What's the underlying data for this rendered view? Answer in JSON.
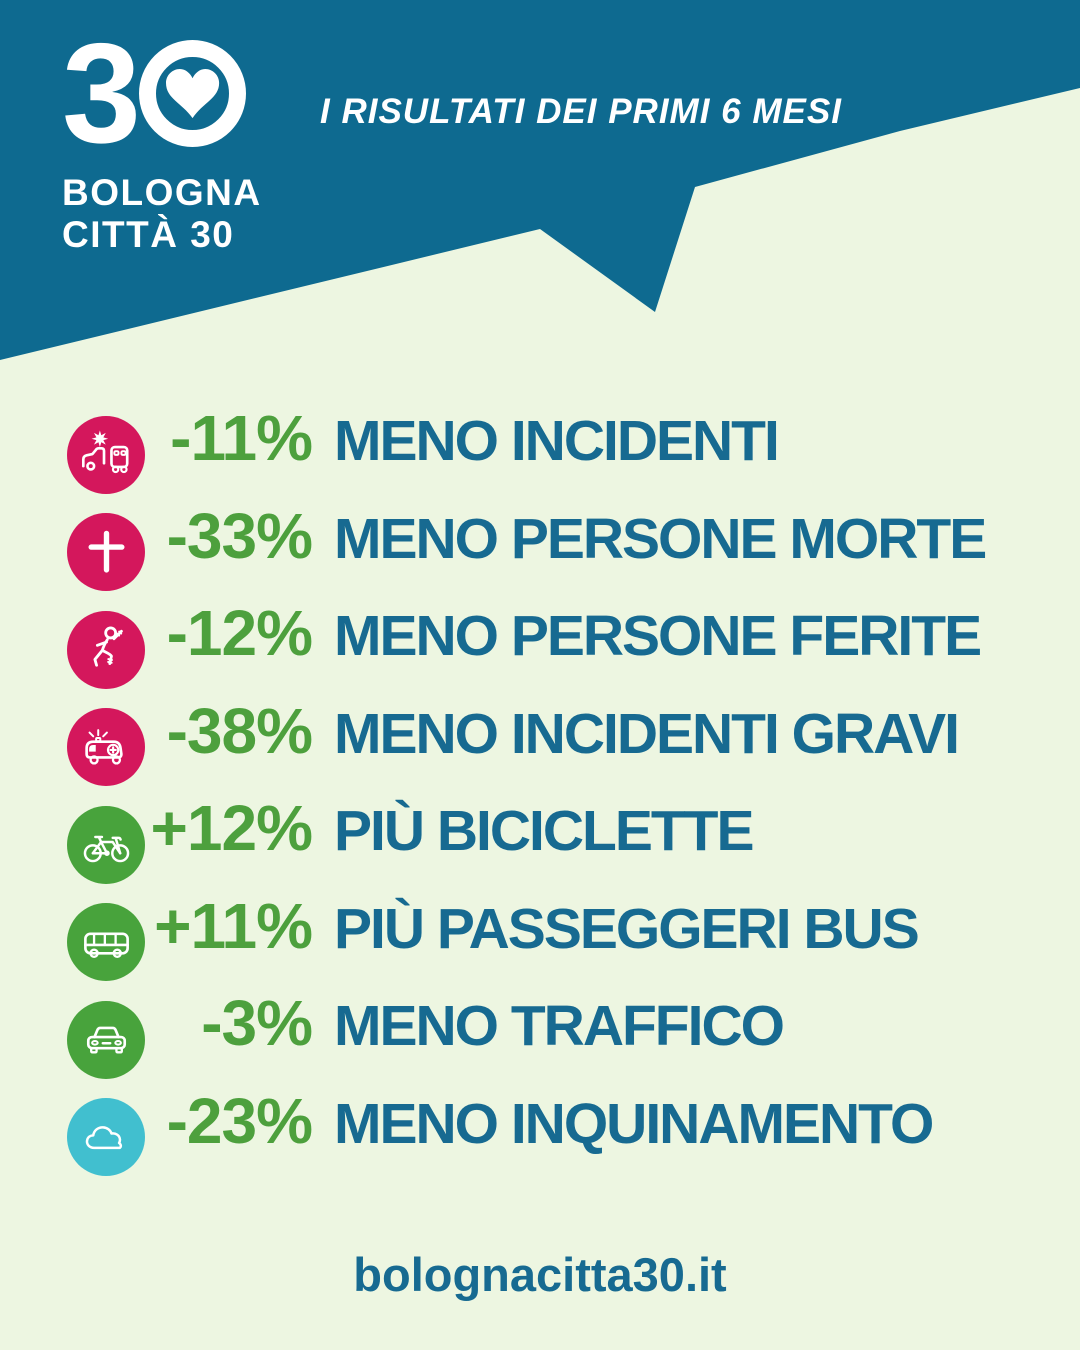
{
  "colors": {
    "background": "#edf6e1",
    "header-bg": "#0e6a90",
    "text-blue": "#176a91",
    "value-green": "#4da03d",
    "circle-pink": "#d4175c",
    "circle-green": "#48a33c",
    "circle-cyan": "#41bfcf",
    "white": "#ffffff"
  },
  "header": {
    "logo": {
      "number": "3",
      "heart_icon": "heart-in-circle",
      "line1": "BOLOGNA",
      "line2": "CITTÀ 30"
    },
    "subtitle": "I RISULTATI DEI PRIMI 6 MESI"
  },
  "stats": [
    {
      "icon": "car-crash",
      "icon_color": "#d4175c",
      "value": "-11%",
      "label": "MENO INCIDENTI"
    },
    {
      "icon": "memorial-cross",
      "icon_color": "#d4175c",
      "value": "-33%",
      "label": "MENO PERSONE MORTE"
    },
    {
      "icon": "falling-person",
      "icon_color": "#d4175c",
      "value": "-12%",
      "label": "MENO PERSONE FERITE"
    },
    {
      "icon": "ambulance",
      "icon_color": "#d4175c",
      "value": "-38%",
      "label": "MENO INCIDENTI GRAVI"
    },
    {
      "icon": "bicycle",
      "icon_color": "#48a33c",
      "value": "+12%",
      "label": "PIÙ BICICLETTE"
    },
    {
      "icon": "bus",
      "icon_color": "#48a33c",
      "value": "+11%",
      "label": "PIÙ PASSEGGERI BUS"
    },
    {
      "icon": "car-front",
      "icon_color": "#48a33c",
      "value": "-3%",
      "label": "MENO TRAFFICO"
    },
    {
      "icon": "pollution-cloud",
      "icon_color": "#41bfcf",
      "value": "-23%",
      "label": "MENO INQUINAMENTO"
    }
  ],
  "footer": {
    "url": "bolognacitta30.it"
  }
}
